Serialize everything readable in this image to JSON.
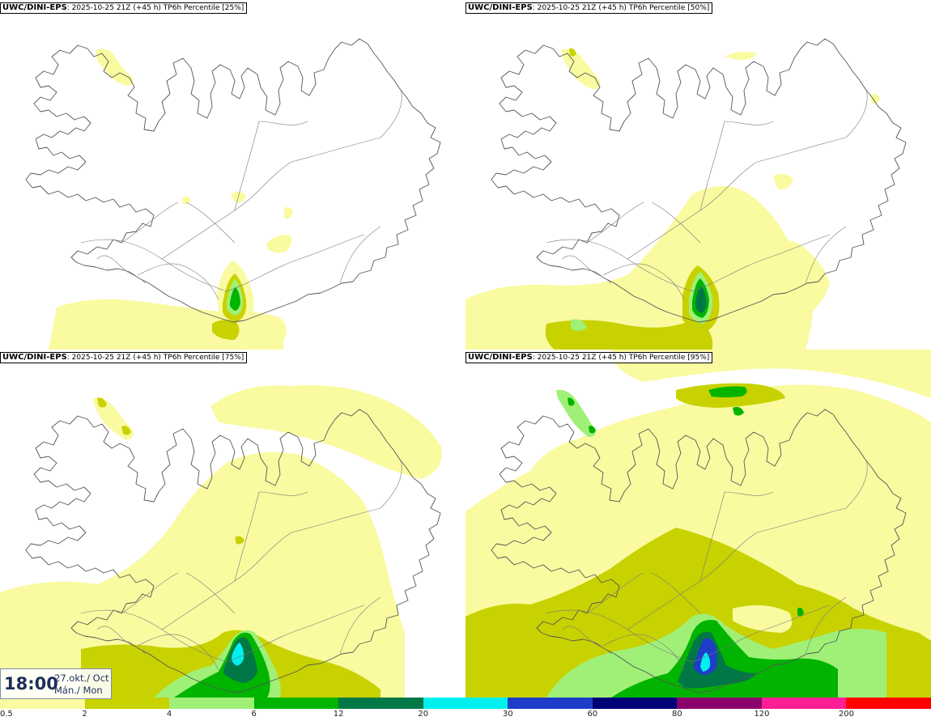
{
  "panels": [
    {
      "source": "UWC/DINI-EPS",
      "run": ": 2025-10-25 21Z",
      "lead": "(+45 h)",
      "field": "TP6h Percentile",
      "percentile": "[25%]"
    },
    {
      "source": "UWC/DINI-EPS",
      "run": ": 2025-10-25 21Z",
      "lead": "(+45 h)",
      "field": "TP6h Percentile",
      "percentile": "[50%]"
    },
    {
      "source": "UWC/DINI-EPS",
      "run": ": 2025-10-25 21Z",
      "lead": "(+45 h)",
      "field": "TP6h Percentile",
      "percentile": "[75%]"
    },
    {
      "source": "UWC/DINI-EPS",
      "run": ": 2025-10-25 21Z",
      "lead": "(+45 h)",
      "field": "TP6h Percentile",
      "percentile": "[95%]"
    }
  ],
  "valid_time": {
    "hour": "18:00",
    "date": "27.okt./ Oct",
    "weekday": "Mán./ Mon"
  },
  "legend": {
    "ticks": [
      "0.5",
      "2",
      "4",
      "6",
      "12",
      "20",
      "30",
      "60",
      "80",
      "120",
      "200"
    ],
    "colors": [
      "#fafaa0",
      "#c8d200",
      "#a0f078",
      "#00b400",
      "#007846",
      "#00f0f0",
      "#1e3cc8",
      "#000078",
      "#8c006e",
      "#ff1e96",
      "#ff0000"
    ]
  }
}
